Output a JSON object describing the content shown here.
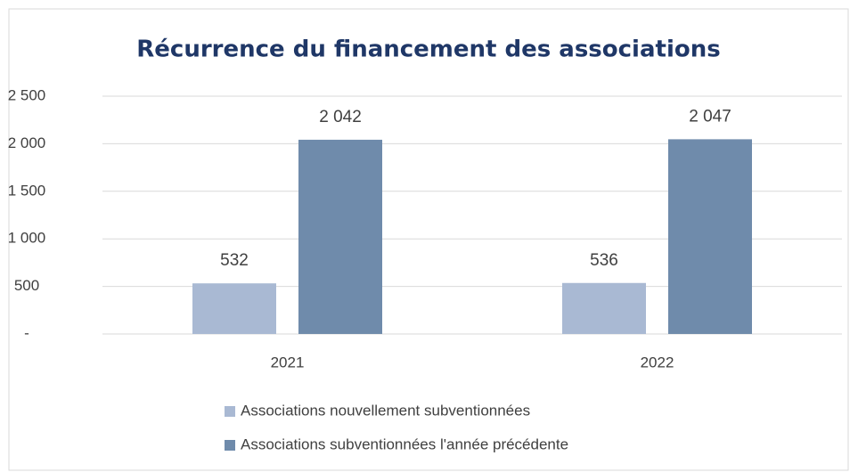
{
  "chart_data": {
    "type": "bar",
    "title": "Récurrence du financement des associations",
    "categories": [
      "2021",
      "2022"
    ],
    "series": [
      {
        "name": "Associations nouvellement subventionnées",
        "color": "#a9b9d3",
        "values": [
          532,
          536
        ],
        "value_labels": [
          "532",
          "536"
        ]
      },
      {
        "name": "Associations subventionnées l'année précédente",
        "color": "#6f8bab",
        "values": [
          2042,
          2047
        ],
        "value_labels": [
          "2 042",
          "2 047"
        ]
      }
    ],
    "ylim": [
      0,
      2500
    ],
    "yticks": [
      {
        "value": 0,
        "label": "-"
      },
      500,
      {
        "value": 1000,
        "label": "1 000"
      },
      {
        "value": 1500,
        "label": "1 500"
      },
      {
        "value": 2000,
        "label": "2 000"
      },
      {
        "value": 2500,
        "label": "2 500"
      }
    ],
    "grid": true,
    "legend": "bottom"
  }
}
